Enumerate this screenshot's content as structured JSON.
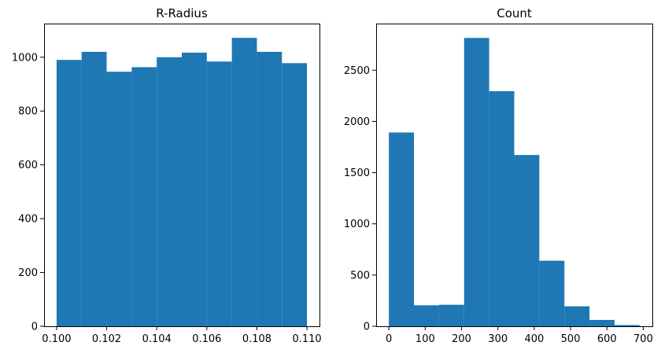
{
  "chart_data": [
    {
      "type": "histogram",
      "title": "R-Radius",
      "xlabel": "",
      "ylabel": "",
      "bar_color": "#1f77b4",
      "bin_edges": [
        0.1,
        0.101,
        0.102,
        0.103,
        0.104,
        0.105,
        0.106,
        0.107,
        0.108,
        0.109,
        0.11
      ],
      "values": [
        990,
        1020,
        946,
        963,
        1000,
        1017,
        984,
        1072,
        1020,
        978
      ],
      "xlim": [
        0.0995,
        0.1105
      ],
      "ylim": [
        0,
        1125
      ],
      "xticks": [
        0.1,
        0.102,
        0.104,
        0.106,
        0.108,
        0.11
      ],
      "xtick_labels": [
        "0.100",
        "0.102",
        "0.104",
        "0.106",
        "0.108",
        "0.110"
      ],
      "yticks": [
        0,
        200,
        400,
        600,
        800,
        1000
      ],
      "ytick_labels": [
        "0",
        "200",
        "400",
        "600",
        "800",
        "1000"
      ],
      "grid": false
    },
    {
      "type": "histogram",
      "title": "Count",
      "xlabel": "",
      "ylabel": "",
      "bar_color": "#1f77b4",
      "bin_edges": [
        0,
        69,
        138,
        207,
        276,
        345,
        414,
        483,
        552,
        621,
        690
      ],
      "values": [
        1892,
        205,
        210,
        2815,
        2295,
        1672,
        640,
        195,
        62,
        12
      ],
      "xlim": [
        -35,
        725
      ],
      "ylim": [
        0,
        2955
      ],
      "xticks": [
        0,
        100,
        200,
        300,
        400,
        500,
        600,
        700
      ],
      "xtick_labels": [
        "0",
        "100",
        "200",
        "300",
        "400",
        "500",
        "600",
        "700"
      ],
      "yticks": [
        0,
        500,
        1000,
        1500,
        2000,
        2500
      ],
      "ytick_labels": [
        "0",
        "500",
        "1000",
        "1500",
        "2000",
        "2500"
      ],
      "grid": false
    }
  ]
}
